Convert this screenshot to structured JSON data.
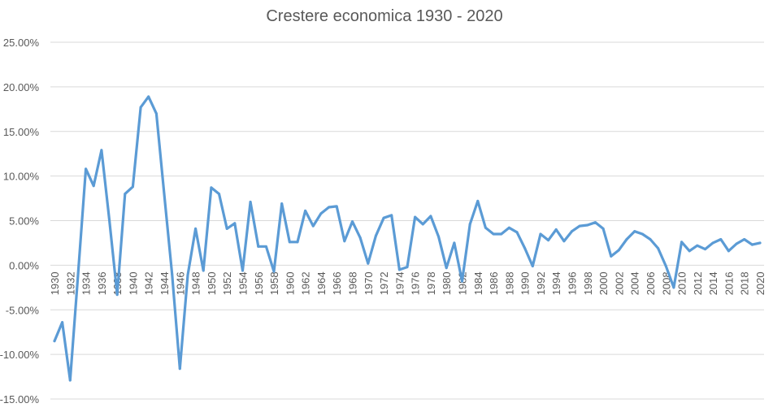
{
  "chart_data": {
    "type": "line",
    "title": "Crestere economica 1930 - 2020",
    "xlabel": "",
    "ylabel": "",
    "ylim": [
      -15,
      25
    ],
    "y_ticks": [
      25,
      20,
      15,
      10,
      5,
      0,
      -5,
      -10,
      -15
    ],
    "y_tick_labels": [
      "25.00%",
      "20.00%",
      "15.00%",
      "10.00%",
      "5.00%",
      "0.00%",
      "-5.00%",
      "-10.00%",
      "-15.00%"
    ],
    "grid": true,
    "legend": "none",
    "line_color": "#5B9BD5",
    "x": [
      1930,
      1931,
      1932,
      1933,
      1934,
      1935,
      1936,
      1937,
      1938,
      1939,
      1940,
      1941,
      1942,
      1943,
      1944,
      1945,
      1946,
      1947,
      1948,
      1949,
      1950,
      1951,
      1952,
      1953,
      1954,
      1955,
      1956,
      1957,
      1958,
      1959,
      1960,
      1961,
      1962,
      1963,
      1964,
      1965,
      1966,
      1967,
      1968,
      1969,
      1970,
      1971,
      1972,
      1973,
      1974,
      1975,
      1976,
      1977,
      1978,
      1979,
      1980,
      1981,
      1982,
      1983,
      1984,
      1985,
      1986,
      1987,
      1988,
      1989,
      1990,
      1991,
      1992,
      1993,
      1994,
      1995,
      1996,
      1997,
      1998,
      1999,
      2000,
      2001,
      2002,
      2003,
      2004,
      2005,
      2006,
      2007,
      2008,
      2009,
      2010,
      2011,
      2012,
      2013,
      2014,
      2015,
      2016,
      2017,
      2018,
      2019,
      2020
    ],
    "x_tick_labels": [
      "1930",
      "1932",
      "1934",
      "1936",
      "1938",
      "1940",
      "1942",
      "1944",
      "1946",
      "1948",
      "1950",
      "1952",
      "1954",
      "1956",
      "1958",
      "1960",
      "1962",
      "1964",
      "1966",
      "1968",
      "1970",
      "1972",
      "1974",
      "1976",
      "1978",
      "1980",
      "1982",
      "1984",
      "1986",
      "1988",
      "1990",
      "1992",
      "1994",
      "1996",
      "1998",
      "2000",
      "2002",
      "2004",
      "2006",
      "2008",
      "2010",
      "2012",
      "2014",
      "2016",
      "2018",
      "2020"
    ],
    "series": [
      {
        "name": "Crestere economica",
        "values": [
          -8.5,
          -6.4,
          -12.9,
          -1.2,
          10.8,
          8.9,
          12.9,
          5.1,
          -3.3,
          8.0,
          8.8,
          17.7,
          18.9,
          17.0,
          8.0,
          -1.0,
          -11.6,
          -1.1,
          4.1,
          -0.6,
          8.7,
          8.0,
          4.1,
          4.7,
          -0.6,
          7.1,
          2.1,
          2.1,
          -0.7,
          6.9,
          2.6,
          2.6,
          6.1,
          4.4,
          5.8,
          6.5,
          6.6,
          2.7,
          4.9,
          3.1,
          0.2,
          3.3,
          5.3,
          5.6,
          -0.5,
          -0.2,
          5.4,
          4.6,
          5.5,
          3.2,
          -0.3,
          2.5,
          -1.8,
          4.6,
          7.2,
          4.2,
          3.5,
          3.5,
          4.2,
          3.7,
          1.9,
          -0.1,
          3.5,
          2.8,
          4.0,
          2.7,
          3.8,
          4.4,
          4.5,
          4.8,
          4.1,
          1.0,
          1.7,
          2.9,
          3.8,
          3.5,
          2.9,
          1.9,
          -0.1,
          -2.5,
          2.6,
          1.6,
          2.2,
          1.8,
          2.5,
          2.9,
          1.6,
          2.4,
          2.9,
          2.3,
          2.5
        ]
      }
    ]
  }
}
